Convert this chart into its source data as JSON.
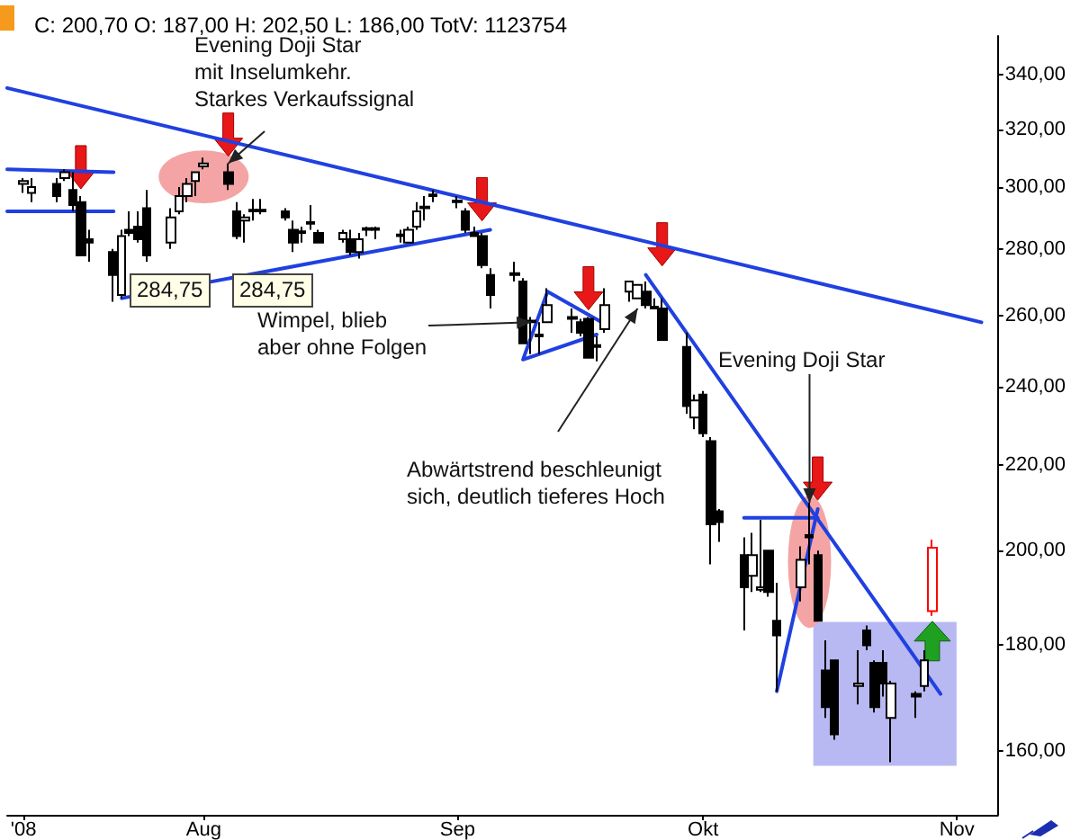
{
  "chart_data": {
    "type": "candlestick",
    "title": "C: 200,70 O: 187,00 H: 202,50 L: 186,00 TotV: 1123754",
    "log": "y",
    "marker": "none",
    "xlim": [
      "2008-07-08",
      "2008-11-06"
    ],
    "xticks": [
      {
        "value": "2008-07-10",
        "label": "'08"
      },
      {
        "value": "2008-08-01",
        "label": "Aug"
      },
      {
        "value": "2008-09-01",
        "label": "Sep"
      },
      {
        "value": "2008-10-01",
        "label": "Okt"
      },
      {
        "value": "2008-11-01",
        "label": "Nov"
      }
    ],
    "ylim": [
      149,
      355
    ],
    "yticks": [
      {
        "value": 160,
        "label": "160,00"
      },
      {
        "value": 180,
        "label": "180,00"
      },
      {
        "value": 200,
        "label": "200,00"
      },
      {
        "value": 220,
        "label": "220,00"
      },
      {
        "value": 240,
        "label": "240,00"
      },
      {
        "value": 260,
        "label": "260,00"
      },
      {
        "value": 280,
        "label": "280,00"
      },
      {
        "value": 300,
        "label": "300,00"
      },
      {
        "value": 320,
        "label": "320,00"
      },
      {
        "value": 340,
        "label": "340,00"
      }
    ],
    "annotations": [
      {
        "text": "Evening Doji Star\nmit Inselumkehr.\nStarkes Verkaufssignal",
        "x": "2008-08-04",
        "y": 308
      },
      "284,75",
      "284,75",
      {
        "text": "Wimpel, blieb\naber ohne Folgen",
        "x": "2008-09-10",
        "y": 258
      },
      {
        "text": "Abwärtstrend beschleunigt\nsich, deutlich tieferes Hoch",
        "x": "2008-09-23",
        "y": 262
      },
      {
        "text": "Evening Doji Star",
        "x": "2008-10-14",
        "y": 211
      }
    ],
    "series": [
      {
        "type": "candlestick",
        "color": "#000000",
        "x": [
          "2008-07-10",
          "2008-07-11",
          "2008-07-14",
          "2008-07-15",
          "2008-07-16",
          "2008-07-17",
          "2008-07-18",
          "2008-07-21",
          "2008-07-22",
          "2008-07-23",
          "2008-07-24",
          "2008-07-25",
          "2008-07-28",
          "2008-07-29",
          "2008-07-30",
          "2008-07-31",
          "2008-08-01",
          "2008-08-04",
          "2008-08-05",
          "2008-08-06",
          "2008-08-07",
          "2008-08-08",
          "2008-08-11",
          "2008-08-12",
          "2008-08-13",
          "2008-08-14",
          "2008-08-15",
          "2008-08-18",
          "2008-08-19",
          "2008-08-20",
          "2008-08-21",
          "2008-08-22",
          "2008-08-25",
          "2008-08-26",
          "2008-08-27",
          "2008-08-28",
          "2008-08-29",
          "2008-09-01",
          "2008-09-02",
          "2008-09-03",
          "2008-09-04",
          "2008-09-05",
          "2008-09-08",
          "2008-09-09",
          "2008-09-10",
          "2008-09-11",
          "2008-09-12",
          "2008-09-15",
          "2008-09-16",
          "2008-09-17",
          "2008-09-18",
          "2008-09-19",
          "2008-09-22",
          "2008-09-23",
          "2008-09-24",
          "2008-09-25",
          "2008-09-26",
          "2008-09-29",
          "2008-09-30",
          "2008-10-01",
          "2008-10-02",
          "2008-10-03",
          "2008-10-06",
          "2008-10-07",
          "2008-10-08",
          "2008-10-09",
          "2008-10-10",
          "2008-10-13",
          "2008-10-14",
          "2008-10-15",
          "2008-10-16",
          "2008-10-17",
          "2008-10-20",
          "2008-10-21",
          "2008-10-22",
          "2008-10-23",
          "2008-10-24",
          "2008-10-27",
          "2008-10-28"
        ],
        "ohlc": [
          [
            301,
            303,
            298,
            302
          ],
          [
            298,
            303,
            295,
            300
          ],
          [
            301,
            303,
            295,
            297
          ],
          [
            303,
            306,
            302,
            305
          ],
          [
            299,
            305,
            292,
            294
          ],
          [
            295,
            297,
            278,
            278
          ],
          [
            283,
            286,
            276,
            282
          ],
          [
            279,
            280,
            264,
            272
          ],
          [
            266,
            286,
            265,
            284
          ],
          [
            286,
            292,
            284,
            285
          ],
          [
            287,
            292,
            282,
            283
          ],
          [
            293,
            299,
            276,
            278
          ],
          [
            282,
            293,
            280,
            290
          ],
          [
            292,
            300,
            291,
            297
          ],
          [
            297,
            303,
            295,
            301
          ],
          [
            302,
            305,
            297,
            305
          ],
          [
            307,
            310,
            306,
            308
          ],
          [
            305,
            308,
            299,
            301
          ],
          [
            292,
            295,
            283,
            284
          ],
          [
            289,
            291,
            282,
            290
          ],
          [
            292,
            296,
            289,
            292.5
          ],
          [
            292.5,
            296,
            291,
            292
          ],
          [
            292,
            293,
            289,
            290
          ],
          [
            286,
            289,
            279,
            282
          ],
          [
            285,
            287,
            282,
            285.5
          ],
          [
            288,
            294,
            286,
            288.5
          ],
          [
            285,
            286,
            282,
            282
          ],
          [
            283,
            286,
            282,
            285
          ],
          [
            283,
            286,
            278,
            279
          ],
          [
            279,
            285,
            277,
            283
          ],
          [
            286,
            287,
            284,
            286.5
          ],
          [
            286.5,
            287,
            283,
            286
          ],
          [
            284,
            286,
            282,
            284.5
          ],
          [
            282,
            287,
            282,
            286
          ],
          [
            287,
            295,
            286,
            292
          ],
          [
            293,
            297,
            289,
            293.5
          ],
          [
            297,
            299,
            295,
            297.5
          ],
          [
            295,
            297,
            293,
            295.5
          ],
          [
            292,
            293,
            285,
            286
          ],
          [
            285,
            287,
            284,
            284
          ],
          [
            284,
            285,
            274,
            275
          ],
          [
            272,
            274,
            262,
            266
          ],
          [
            272,
            276,
            270,
            272.5
          ],
          [
            270,
            271,
            252,
            252
          ],
          [
            258.5,
            259.5,
            249,
            258
          ],
          [
            254,
            258,
            249,
            254.5
          ],
          [
            258,
            268,
            258,
            263
          ],
          [
            259,
            262,
            255,
            259.5
          ],
          [
            258,
            259,
            254,
            255
          ],
          [
            259,
            259.5,
            248,
            248
          ],
          [
            251,
            254,
            247,
            251.5
          ],
          [
            256,
            268,
            255,
            263
          ],
          [
            267,
            270,
            264,
            270
          ],
          [
            265,
            269,
            265,
            269
          ],
          [
            267,
            270,
            262,
            263
          ],
          [
            262,
            265,
            262,
            262.5
          ],
          [
            262,
            265,
            253,
            253
          ],
          [
            251,
            255,
            233,
            235
          ],
          [
            232,
            238,
            229,
            236.5
          ],
          [
            238,
            239,
            227,
            228
          ],
          [
            226,
            227,
            197,
            206
          ],
          [
            209,
            209.5,
            202,
            206.5
          ],
          [
            199,
            203,
            183,
            192
          ],
          [
            194.5,
            204,
            191,
            199
          ],
          [
            191.5,
            207,
            191,
            192
          ],
          [
            200,
            200,
            190,
            191
          ],
          [
            185,
            193,
            171,
            182
          ],
          [
            192,
            201,
            189,
            198
          ],
          [
            203.5,
            211,
            197,
            203
          ],
          [
            199,
            200,
            185,
            185
          ],
          [
            175,
            181,
            166,
            168
          ],
          [
            177,
            177,
            162,
            163
          ],
          [
            172,
            179,
            168.5,
            172.5
          ],
          [
            183,
            184,
            179,
            180
          ],
          [
            176.5,
            177,
            167,
            168
          ],
          [
            176.5,
            179,
            170,
            172.5
          ],
          [
            166,
            173,
            158,
            172.5
          ],
          [
            170.5,
            171,
            166,
            170
          ],
          [
            172,
            179,
            171,
            177
          ]
        ]
      },
      {
        "type": "candlestick",
        "color": "#ff0000",
        "x": [
          "2008-10-29"
        ],
        "ohlc": [
          [
            187,
            202.5,
            186,
            200.7
          ]
        ]
      },
      {
        "type": "line",
        "color": "#2040e0",
        "x": [
          "2008-07-08",
          "2008-11-04"
        ],
        "values": [
          335,
          258
        ]
      },
      {
        "type": "line",
        "color": "#2040e0",
        "x": [
          "2008-07-08",
          "2008-07-21"
        ],
        "values": [
          306,
          305
        ]
      },
      {
        "type": "line",
        "color": "#2040e0",
        "x": [
          "2008-07-08",
          "2008-07-21"
        ],
        "values": [
          292,
          292
        ]
      },
      {
        "type": "line",
        "color": "#2040e0",
        "x": [
          "2008-07-22",
          "2008-09-05"
        ],
        "values": [
          265,
          286
        ]
      },
      {
        "type": "line",
        "color": "#2040e0",
        "x": [
          "2008-09-19",
          "2008-09-12",
          "2008-09-09",
          "2008-09-18"
        ],
        "values": [
          257.5,
          267,
          247.5,
          254.5
        ]
      },
      {
        "type": "line",
        "color": "#2040e0",
        "x": [
          "2008-09-24",
          "2008-10-30"
        ],
        "values": [
          272,
          170.5
        ]
      },
      {
        "type": "line",
        "color": "#2040e0",
        "x": [
          "2008-10-06",
          "2008-10-15"
        ],
        "values": [
          207.5,
          207.5
        ]
      },
      {
        "type": "line",
        "color": "#2040e0",
        "x": [
          "2008-10-10",
          "2008-10-15"
        ],
        "values": [
          171,
          209.5
        ]
      }
    ]
  }
}
